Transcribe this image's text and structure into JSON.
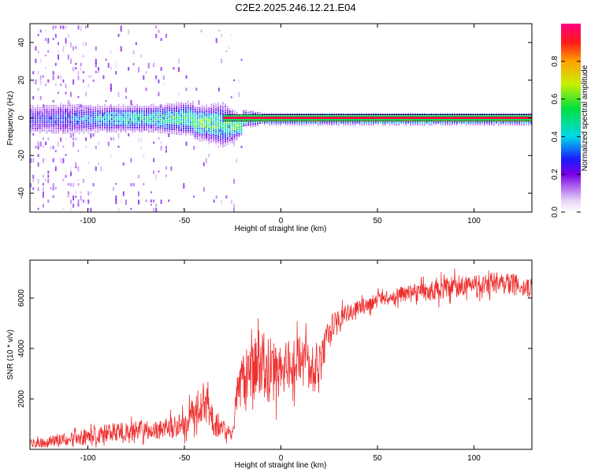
{
  "title": "C2E2.2025.246.12.21.E04",
  "chart_data": [
    {
      "type": "heatmap",
      "xlabel": "Height of straight line (km)",
      "ylabel": "Frequency (Hz)",
      "xlim": [
        -130,
        130
      ],
      "ylim": [
        -50,
        50
      ],
      "xticks": [
        -100,
        -50,
        0,
        50,
        100
      ],
      "yticks": [
        -40,
        -20,
        0,
        20,
        40
      ],
      "colorbar": {
        "label": "Normalized spectral amplitude",
        "range": [
          0,
          1
        ],
        "ticks": [
          0.0,
          0.2,
          0.4,
          0.6,
          0.8
        ],
        "tick_labels": [
          "0.0",
          "0.2",
          "0.4",
          "0.6",
          "0.8"
        ]
      },
      "central_line": {
        "frequency_hz": 0,
        "x_start": -30,
        "x_end": 130,
        "peak_amplitude": 0.95
      },
      "spectral_band": [
        {
          "x": -125,
          "half_width_hz": 6,
          "amplitude": 0.3
        },
        {
          "x": -110,
          "half_width_hz": 6,
          "amplitude": 0.35
        },
        {
          "x": -95,
          "half_width_hz": 5,
          "amplitude": 0.45
        },
        {
          "x": -80,
          "half_width_hz": 5,
          "amplitude": 0.5
        },
        {
          "x": -65,
          "half_width_hz": 5,
          "amplitude": 0.52
        },
        {
          "x": -50,
          "half_width_hz": 6,
          "amplitude": 0.55
        },
        {
          "x": -40,
          "half_width_hz": 6,
          "amplitude": 0.65
        },
        {
          "x": -30,
          "half_width_hz": 8,
          "amplitude": 0.55
        },
        {
          "x": -20,
          "half_width_hz": 3,
          "amplitude": 0.75
        },
        {
          "x": -10,
          "half_width_hz": 2,
          "amplitude": 0.85
        },
        {
          "x": 10,
          "half_width_hz": 2,
          "amplitude": 0.9
        },
        {
          "x": 100,
          "half_width_hz": 2,
          "amplitude": 0.9
        }
      ]
    },
    {
      "type": "line",
      "xlabel": "Height of straight line (km)",
      "ylabel": "SNR (10 * v/v)",
      "xlim": [
        -130,
        130
      ],
      "ylim": [
        0,
        7500
      ],
      "xticks": [
        -100,
        -50,
        0,
        50,
        100
      ],
      "yticks": [
        2000,
        4000,
        6000
      ],
      "series": [
        {
          "name": "SNR",
          "color": "#ee3030",
          "x": [
            -130,
            -120,
            -110,
            -100,
            -90,
            -80,
            -70,
            -60,
            -50,
            -45,
            -40,
            -35,
            -30,
            -25,
            -22,
            -20,
            -15,
            -10,
            -5,
            0,
            5,
            10,
            15,
            20,
            25,
            30,
            40,
            50,
            60,
            70,
            80,
            90,
            100,
            110,
            120,
            130
          ],
          "y": [
            200,
            300,
            400,
            500,
            650,
            700,
            800,
            850,
            950,
            1500,
            2000,
            1200,
            800,
            500,
            2800,
            2500,
            3000,
            3400,
            3100,
            3000,
            3300,
            3500,
            3200,
            3300,
            4600,
            5200,
            5600,
            5900,
            6100,
            6200,
            6300,
            6450,
            6550,
            6600,
            6550,
            6400
          ],
          "noise_amplitude": [
            250,
            300,
            350,
            400,
            450,
            500,
            500,
            550,
            600,
            800,
            1000,
            800,
            500,
            300,
            1400,
            1600,
            1800,
            1800,
            1600,
            1500,
            1400,
            1300,
            1200,
            1000,
            700,
            500,
            400,
            350,
            400,
            450,
            500,
            550,
            550,
            550,
            550,
            500
          ]
        }
      ]
    }
  ]
}
